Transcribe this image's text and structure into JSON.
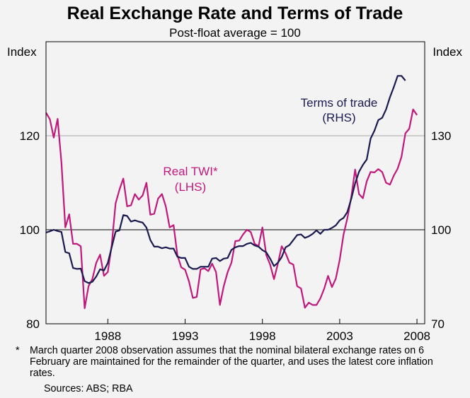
{
  "chart_data": {
    "type": "line",
    "title": "Real Exchange Rate and Terms of Trade",
    "subtitle": "Post-float average = 100",
    "left_axis": {
      "label": "Index",
      "ylim": [
        80,
        140
      ],
      "ticks": [
        80,
        100,
        120
      ]
    },
    "right_axis": {
      "label": "Index",
      "ylim": [
        70,
        160
      ],
      "ticks": [
        70,
        100,
        130
      ]
    },
    "x_axis": {
      "xlim": [
        1984.0,
        2008.5
      ],
      "ticks": [
        1988,
        1993,
        1998,
        2003,
        2008
      ],
      "tick_labels": [
        "1988",
        "1993",
        "1998",
        "2003",
        "2008"
      ]
    },
    "gridlines": [
      {
        "left_value": 100,
        "color": "#000000"
      },
      {
        "left_value": 120,
        "color": "#aaaaaa"
      }
    ],
    "series": [
      {
        "name": "Real TWI*",
        "sublabel": "(LHS)",
        "axis": "left",
        "color": "#c0187c",
        "points": [
          [
            1984.0,
            124.9
          ],
          [
            1984.25,
            123.5
          ],
          [
            1984.5,
            119.6
          ],
          [
            1984.75,
            123.6
          ],
          [
            1985.0,
            114.3
          ],
          [
            1985.25,
            100.5
          ],
          [
            1985.5,
            103.3
          ],
          [
            1985.75,
            97.0
          ],
          [
            1986.0,
            97.0
          ],
          [
            1986.25,
            96.5
          ],
          [
            1986.5,
            83.3
          ],
          [
            1986.75,
            88.0
          ],
          [
            1987.0,
            89.5
          ],
          [
            1987.25,
            93.0
          ],
          [
            1987.5,
            94.7
          ],
          [
            1987.75,
            90.2
          ],
          [
            1988.0,
            91.0
          ],
          [
            1988.25,
            96.7
          ],
          [
            1988.5,
            105.6
          ],
          [
            1988.75,
            108.5
          ],
          [
            1989.0,
            110.9
          ],
          [
            1989.25,
            105.0
          ],
          [
            1989.5,
            105.2
          ],
          [
            1989.75,
            107.6
          ],
          [
            1990.0,
            106.4
          ],
          [
            1990.25,
            107.3
          ],
          [
            1990.5,
            110.0
          ],
          [
            1990.75,
            103.2
          ],
          [
            1991.0,
            103.4
          ],
          [
            1991.25,
            106.6
          ],
          [
            1991.5,
            107.6
          ],
          [
            1991.75,
            105.0
          ],
          [
            1992.0,
            100.5
          ],
          [
            1992.25,
            101.0
          ],
          [
            1992.5,
            94.6
          ],
          [
            1992.75,
            92.0
          ],
          [
            1993.0,
            91.5
          ],
          [
            1993.25,
            89.0
          ],
          [
            1993.5,
            85.5
          ],
          [
            1993.75,
            85.7
          ],
          [
            1994.0,
            91.6
          ],
          [
            1994.25,
            91.8
          ],
          [
            1994.5,
            91.2
          ],
          [
            1994.75,
            92.8
          ],
          [
            1995.0,
            91.0
          ],
          [
            1995.25,
            84.0
          ],
          [
            1995.5,
            88.0
          ],
          [
            1995.75,
            91.0
          ],
          [
            1996.0,
            93.0
          ],
          [
            1996.25,
            97.6
          ],
          [
            1996.5,
            97.7
          ],
          [
            1996.75,
            99.0
          ],
          [
            1997.0,
            100.0
          ],
          [
            1997.25,
            99.5
          ],
          [
            1997.5,
            97.0
          ],
          [
            1997.75,
            96.5
          ],
          [
            1998.0,
            100.5
          ],
          [
            1998.25,
            94.6
          ],
          [
            1998.5,
            92.6
          ],
          [
            1998.75,
            89.5
          ],
          [
            1999.0,
            92.8
          ],
          [
            1999.25,
            96.5
          ],
          [
            1999.5,
            95.0
          ],
          [
            1999.75,
            93.0
          ],
          [
            2000.0,
            92.6
          ],
          [
            2000.25,
            88.0
          ],
          [
            2000.5,
            87.5
          ],
          [
            2000.75,
            83.4
          ],
          [
            2001.0,
            84.5
          ],
          [
            2001.25,
            84.0
          ],
          [
            2001.5,
            84.0
          ],
          [
            2001.75,
            85.4
          ],
          [
            2002.0,
            87.5
          ],
          [
            2002.25,
            90.2
          ],
          [
            2002.5,
            87.8
          ],
          [
            2002.75,
            89.6
          ],
          [
            2003.0,
            93.6
          ],
          [
            2003.25,
            99.0
          ],
          [
            2003.5,
            102.5
          ],
          [
            2003.75,
            107.0
          ],
          [
            2004.0,
            112.8
          ],
          [
            2004.25,
            107.6
          ],
          [
            2004.5,
            106.7
          ],
          [
            2004.75,
            110.3
          ],
          [
            2005.0,
            112.3
          ],
          [
            2005.25,
            112.2
          ],
          [
            2005.5,
            112.9
          ],
          [
            2005.75,
            112.3
          ],
          [
            2006.0,
            110.0
          ],
          [
            2006.25,
            109.6
          ],
          [
            2006.5,
            111.5
          ],
          [
            2006.75,
            113.0
          ],
          [
            2007.0,
            115.5
          ],
          [
            2007.25,
            120.5
          ],
          [
            2007.5,
            121.5
          ],
          [
            2007.75,
            125.6
          ],
          [
            2008.0,
            124.4
          ]
        ]
      },
      {
        "name": "Terms of trade",
        "sublabel": "(RHS)",
        "axis": "right",
        "color": "#1a1a50",
        "points": [
          [
            1984.0,
            99.1
          ],
          [
            1984.25,
            99.5
          ],
          [
            1984.5,
            100.0
          ],
          [
            1984.75,
            99.6
          ],
          [
            1985.0,
            99.3
          ],
          [
            1985.25,
            92.9
          ],
          [
            1985.5,
            92.5
          ],
          [
            1985.75,
            87.8
          ],
          [
            1986.0,
            87.5
          ],
          [
            1986.25,
            87.6
          ],
          [
            1986.5,
            83.6
          ],
          [
            1986.75,
            83.0
          ],
          [
            1987.0,
            83.4
          ],
          [
            1987.25,
            85.1
          ],
          [
            1987.5,
            87.4
          ],
          [
            1987.75,
            87.0
          ],
          [
            1988.0,
            89.4
          ],
          [
            1988.25,
            94.4
          ],
          [
            1988.5,
            99.4
          ],
          [
            1988.75,
            99.8
          ],
          [
            1989.0,
            104.7
          ],
          [
            1989.25,
            104.4
          ],
          [
            1989.5,
            102.6
          ],
          [
            1989.75,
            103.0
          ],
          [
            1990.0,
            102.6
          ],
          [
            1990.25,
            102.3
          ],
          [
            1990.5,
            100.7
          ],
          [
            1990.75,
            96.7
          ],
          [
            1991.0,
            94.6
          ],
          [
            1991.25,
            94.6
          ],
          [
            1991.5,
            94.1
          ],
          [
            1991.75,
            94.4
          ],
          [
            1992.0,
            94.0
          ],
          [
            1992.25,
            94.0
          ],
          [
            1992.5,
            91.4
          ],
          [
            1992.75,
            91.0
          ],
          [
            1993.0,
            91.0
          ],
          [
            1993.25,
            88.2
          ],
          [
            1993.5,
            87.5
          ],
          [
            1993.75,
            87.5
          ],
          [
            1994.0,
            88.2
          ],
          [
            1994.25,
            88.2
          ],
          [
            1994.5,
            88.2
          ],
          [
            1994.75,
            90.8
          ],
          [
            1995.0,
            91.0
          ],
          [
            1995.25,
            90.0
          ],
          [
            1995.5,
            90.8
          ],
          [
            1995.75,
            91.0
          ],
          [
            1996.0,
            93.6
          ],
          [
            1996.25,
            94.4
          ],
          [
            1996.5,
            94.8
          ],
          [
            1996.75,
            94.8
          ],
          [
            1997.0,
            95.5
          ],
          [
            1997.25,
            95.8
          ],
          [
            1997.5,
            95.0
          ],
          [
            1997.75,
            94.6
          ],
          [
            1998.0,
            93.5
          ],
          [
            1998.25,
            92.8
          ],
          [
            1998.5,
            90.8
          ],
          [
            1998.75,
            88.4
          ],
          [
            1999.0,
            89.5
          ],
          [
            1999.25,
            91.3
          ],
          [
            1999.5,
            94.4
          ],
          [
            1999.75,
            95.1
          ],
          [
            2000.0,
            96.7
          ],
          [
            2000.25,
            98.3
          ],
          [
            2000.5,
            98.5
          ],
          [
            2000.75,
            97.4
          ],
          [
            2001.0,
            97.9
          ],
          [
            2001.25,
            98.7
          ],
          [
            2001.5,
            99.8
          ],
          [
            2001.75,
            98.7
          ],
          [
            2002.0,
            100.0
          ],
          [
            2002.25,
            100.0
          ],
          [
            2002.5,
            100.6
          ],
          [
            2002.75,
            101.4
          ],
          [
            2003.0,
            103.0
          ],
          [
            2003.25,
            103.8
          ],
          [
            2003.5,
            105.7
          ],
          [
            2003.75,
            109.9
          ],
          [
            2004.0,
            114.8
          ],
          [
            2004.25,
            118.5
          ],
          [
            2004.5,
            120.7
          ],
          [
            2004.75,
            122.4
          ],
          [
            2005.0,
            129.1
          ],
          [
            2005.25,
            131.6
          ],
          [
            2005.5,
            135.0
          ],
          [
            2005.75,
            135.7
          ],
          [
            2006.0,
            138.4
          ],
          [
            2006.25,
            142.3
          ],
          [
            2006.5,
            145.5
          ],
          [
            2006.75,
            149.1
          ],
          [
            2007.0,
            149.1
          ],
          [
            2007.25,
            147.6
          ]
        ]
      }
    ],
    "footnote_marker": "*",
    "footnote": "March quarter 2008 observation assumes that the nominal bilateral exchange rates on 6 February are maintained for the remainder of the quarter, and uses the latest core inflation rates.",
    "sources": "Sources: ABS; RBA"
  }
}
